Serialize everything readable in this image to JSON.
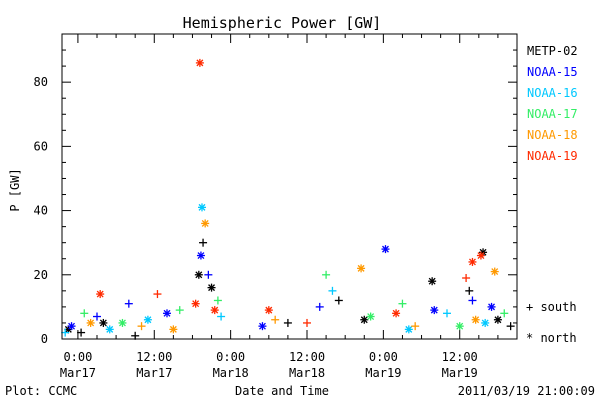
{
  "chart_data": {
    "type": "scatter",
    "title": "Hemispheric Power [GW]",
    "xlabel": "Date and Time",
    "ylabel": "P [GW]",
    "ylim": [
      0,
      95
    ],
    "xlim": [
      "2011-03-16T21:30",
      "2011-03-19T21:00"
    ],
    "yticks": [
      0,
      20,
      40,
      60,
      80
    ],
    "xticks": [
      {
        "time": "2011-03-17T00:00",
        "line1": "0:00",
        "line2": "Mar17"
      },
      {
        "time": "2011-03-17T12:00",
        "line1": "12:00",
        "line2": "Mar17"
      },
      {
        "time": "2011-03-18T00:00",
        "line1": "0:00",
        "line2": "Mar18"
      },
      {
        "time": "2011-03-18T12:00",
        "line1": "12:00",
        "line2": "Mar18"
      },
      {
        "time": "2011-03-19T00:00",
        "line1": "0:00",
        "line2": "Mar19"
      },
      {
        "time": "2011-03-19T12:00",
        "line1": "12:00",
        "line2": "Mar19"
      }
    ],
    "legend_markers": {
      "south": "+ south",
      "north": "* north"
    },
    "series": [
      {
        "name": "METP-02",
        "color": "#000000",
        "points": [
          {
            "time": "2011-03-16T22:30",
            "value": 3,
            "hemisphere": "north"
          },
          {
            "time": "2011-03-17T00:30",
            "value": 2,
            "hemisphere": "south"
          },
          {
            "time": "2011-03-17T04:00",
            "value": 5,
            "hemisphere": "north"
          },
          {
            "time": "2011-03-17T09:00",
            "value": 1,
            "hemisphere": "south"
          },
          {
            "time": "2011-03-17T19:00",
            "value": 20,
            "hemisphere": "north"
          },
          {
            "time": "2011-03-17T19:40",
            "value": 30,
            "hemisphere": "south"
          },
          {
            "time": "2011-03-17T21:00",
            "value": 16,
            "hemisphere": "north"
          },
          {
            "time": "2011-03-18T09:00",
            "value": 5,
            "hemisphere": "south"
          },
          {
            "time": "2011-03-18T17:00",
            "value": 12,
            "hemisphere": "south"
          },
          {
            "time": "2011-03-18T21:00",
            "value": 6,
            "hemisphere": "north"
          },
          {
            "time": "2011-03-19T07:40",
            "value": 18,
            "hemisphere": "north"
          },
          {
            "time": "2011-03-19T13:30",
            "value": 15,
            "hemisphere": "south"
          },
          {
            "time": "2011-03-19T15:40",
            "value": 27,
            "hemisphere": "north"
          },
          {
            "time": "2011-03-19T18:00",
            "value": 6,
            "hemisphere": "north"
          },
          {
            "time": "2011-03-19T20:00",
            "value": 4,
            "hemisphere": "south"
          }
        ]
      },
      {
        "name": "NOAA-15",
        "color": "#0000ff",
        "points": [
          {
            "time": "2011-03-16T23:00",
            "value": 4,
            "hemisphere": "north"
          },
          {
            "time": "2011-03-17T03:00",
            "value": 7,
            "hemisphere": "south"
          },
          {
            "time": "2011-03-17T08:00",
            "value": 11,
            "hemisphere": "south"
          },
          {
            "time": "2011-03-17T14:00",
            "value": 8,
            "hemisphere": "north"
          },
          {
            "time": "2011-03-17T19:20",
            "value": 26,
            "hemisphere": "north"
          },
          {
            "time": "2011-03-17T20:30",
            "value": 20,
            "hemisphere": "south"
          },
          {
            "time": "2011-03-18T05:00",
            "value": 4,
            "hemisphere": "north"
          },
          {
            "time": "2011-03-18T14:00",
            "value": 10,
            "hemisphere": "south"
          },
          {
            "time": "2011-03-19T00:20",
            "value": 28,
            "hemisphere": "north"
          },
          {
            "time": "2011-03-19T08:00",
            "value": 9,
            "hemisphere": "north"
          },
          {
            "time": "2011-03-19T14:00",
            "value": 12,
            "hemisphere": "south"
          },
          {
            "time": "2011-03-19T17:00",
            "value": 10,
            "hemisphere": "north"
          }
        ]
      },
      {
        "name": "NOAA-16",
        "color": "#00c8ff",
        "points": [
          {
            "time": "2011-03-16T22:00",
            "value": 2,
            "hemisphere": "south"
          },
          {
            "time": "2011-03-17T05:00",
            "value": 3,
            "hemisphere": "north"
          },
          {
            "time": "2011-03-17T11:00",
            "value": 6,
            "hemisphere": "north"
          },
          {
            "time": "2011-03-17T19:30",
            "value": 41,
            "hemisphere": "north"
          },
          {
            "time": "2011-03-17T22:30",
            "value": 7,
            "hemisphere": "south"
          },
          {
            "time": "2011-03-18T16:00",
            "value": 15,
            "hemisphere": "south"
          },
          {
            "time": "2011-03-19T04:00",
            "value": 3,
            "hemisphere": "north"
          },
          {
            "time": "2011-03-19T10:00",
            "value": 8,
            "hemisphere": "south"
          },
          {
            "time": "2011-03-19T16:00",
            "value": 5,
            "hemisphere": "north"
          }
        ]
      },
      {
        "name": "NOAA-17",
        "color": "#33ee66",
        "points": [
          {
            "time": "2011-03-17T01:00",
            "value": 8,
            "hemisphere": "south"
          },
          {
            "time": "2011-03-17T07:00",
            "value": 5,
            "hemisphere": "north"
          },
          {
            "time": "2011-03-17T16:00",
            "value": 9,
            "hemisphere": "south"
          },
          {
            "time": "2011-03-17T22:00",
            "value": 12,
            "hemisphere": "south"
          },
          {
            "time": "2011-03-18T15:00",
            "value": 20,
            "hemisphere": "south"
          },
          {
            "time": "2011-03-18T22:00",
            "value": 7,
            "hemisphere": "north"
          },
          {
            "time": "2011-03-19T03:00",
            "value": 11,
            "hemisphere": "south"
          },
          {
            "time": "2011-03-19T12:00",
            "value": 4,
            "hemisphere": "north"
          },
          {
            "time": "2011-03-19T19:00",
            "value": 8,
            "hemisphere": "south"
          }
        ]
      },
      {
        "name": "NOAA-18",
        "color": "#ff9900",
        "points": [
          {
            "time": "2011-03-17T02:00",
            "value": 5,
            "hemisphere": "north"
          },
          {
            "time": "2011-03-17T10:00",
            "value": 4,
            "hemisphere": "south"
          },
          {
            "time": "2011-03-17T15:00",
            "value": 3,
            "hemisphere": "north"
          },
          {
            "time": "2011-03-17T20:00",
            "value": 36,
            "hemisphere": "north"
          },
          {
            "time": "2011-03-18T07:00",
            "value": 6,
            "hemisphere": "south"
          },
          {
            "time": "2011-03-18T20:30",
            "value": 22,
            "hemisphere": "north"
          },
          {
            "time": "2011-03-19T05:00",
            "value": 4,
            "hemisphere": "south"
          },
          {
            "time": "2011-03-19T14:30",
            "value": 6,
            "hemisphere": "north"
          },
          {
            "time": "2011-03-19T17:30",
            "value": 21,
            "hemisphere": "north"
          }
        ]
      },
      {
        "name": "NOAA-19",
        "color": "#ff2a00",
        "points": [
          {
            "time": "2011-03-17T03:30",
            "value": 14,
            "hemisphere": "north"
          },
          {
            "time": "2011-03-17T12:30",
            "value": 14,
            "hemisphere": "south"
          },
          {
            "time": "2011-03-17T18:30",
            "value": 11,
            "hemisphere": "north"
          },
          {
            "time": "2011-03-17T19:10",
            "value": 86,
            "hemisphere": "north"
          },
          {
            "time": "2011-03-17T21:30",
            "value": 9,
            "hemisphere": "north"
          },
          {
            "time": "2011-03-18T06:00",
            "value": 9,
            "hemisphere": "north"
          },
          {
            "time": "2011-03-18T12:00",
            "value": 5,
            "hemisphere": "south"
          },
          {
            "time": "2011-03-19T02:00",
            "value": 8,
            "hemisphere": "north"
          },
          {
            "time": "2011-03-19T13:00",
            "value": 19,
            "hemisphere": "south"
          },
          {
            "time": "2011-03-19T14:00",
            "value": 24,
            "hemisphere": "north"
          },
          {
            "time": "2011-03-19T15:20",
            "value": 26,
            "hemisphere": "north"
          }
        ]
      }
    ]
  },
  "footer": {
    "left": "Plot: CCMC",
    "right": "2011/03/19 21:00:09"
  }
}
